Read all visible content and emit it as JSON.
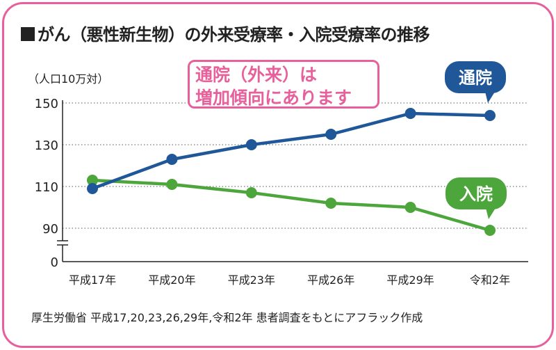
{
  "chart_data": {
    "type": "line",
    "title": "がん（悪性新生物）の外来受療率・入院受療率の推移",
    "ylabel": "（人口10万対）",
    "categories": [
      "平成17年",
      "平成20年",
      "平成23年",
      "平成26年",
      "平成29年",
      "令和2年"
    ],
    "yticks": [
      0,
      90,
      110,
      130,
      150
    ],
    "ylim": [
      0,
      150
    ],
    "axis_break": true,
    "grid": true,
    "series": [
      {
        "name": "通院",
        "color": "#1f5799",
        "values": [
          109,
          123,
          130,
          135,
          145,
          144
        ]
      },
      {
        "name": "入院",
        "color": "#4da63b",
        "values": [
          113,
          111,
          107,
          102,
          100,
          89
        ]
      }
    ],
    "annotation": [
      "通院（外来）は",
      "増加傾向にあります"
    ],
    "source": "厚生労働省 平成17,20,23,26,29年,令和2年 患者調査をもとにアフラック作成"
  }
}
